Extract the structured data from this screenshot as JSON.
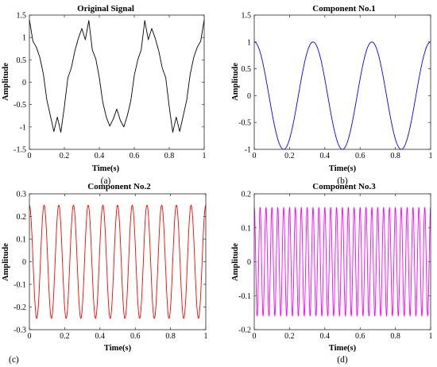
{
  "chart_data": [
    {
      "type": "line",
      "panel_label": "(a)",
      "title": "Original Signal",
      "xlabel": "Time(s)",
      "ylabel": "Amplitude",
      "xlim": [
        0,
        1
      ],
      "ylim": [
        -1.5,
        1.5
      ],
      "xticks": [
        "0",
        "0.2",
        "0.4",
        "0.6",
        "0.8",
        "1"
      ],
      "yticks": [
        "-1.5",
        "-1",
        "-0.5",
        "0",
        "0.5",
        "1",
        "1.5"
      ],
      "grid": false,
      "series": [
        {
          "color": "#000000",
          "x": [
            0,
            0.02,
            0.04,
            0.06,
            0.08,
            0.1,
            0.12,
            0.14,
            0.16,
            0.18,
            0.2,
            0.22,
            0.24,
            0.26,
            0.28,
            0.3,
            0.32,
            0.34,
            0.36,
            0.38,
            0.4,
            0.42,
            0.44,
            0.46,
            0.48,
            0.5,
            0.52,
            0.54,
            0.56,
            0.58,
            0.6,
            0.62,
            0.64,
            0.66,
            0.68,
            0.7,
            0.72,
            0.74,
            0.76,
            0.78,
            0.8,
            0.82,
            0.84,
            0.86,
            0.88,
            0.9,
            0.92,
            0.94,
            0.96,
            0.98,
            1.0
          ],
          "y": [
            1.4,
            0.92,
            0.78,
            0.55,
            0.18,
            -0.4,
            -0.75,
            -1.1,
            -0.78,
            -1.12,
            -0.55,
            0.1,
            0.32,
            0.7,
            0.98,
            1.2,
            0.95,
            1.38,
            0.72,
            0.52,
            0.1,
            -0.45,
            -0.78,
            -0.98,
            -0.82,
            -0.6,
            -0.85,
            -1.0,
            -0.75,
            -0.42,
            0.15,
            0.5,
            0.73,
            1.38,
            0.95,
            1.2,
            0.98,
            0.7,
            0.32,
            0.1,
            -0.55,
            -1.12,
            -0.78,
            -1.1,
            -0.75,
            -0.4,
            0.18,
            0.55,
            0.78,
            0.92,
            1.4
          ]
        }
      ]
    },
    {
      "type": "line",
      "panel_label": "(b)",
      "title": "Component No.1",
      "xlabel": "Time(s)",
      "ylabel": "Amplitude",
      "xlim": [
        0,
        1
      ],
      "ylim": [
        -1,
        1.5
      ],
      "xticks": [
        "0",
        "0.2",
        "0.4",
        "0.6",
        "0.8",
        "1"
      ],
      "yticks": [
        "-1",
        "-0.5",
        "0",
        "0.5",
        "1",
        "1.5"
      ],
      "grid": false,
      "series": [
        {
          "color": "#0000ff",
          "function": "cosine",
          "amplitude": 1,
          "frequency_hz": 3
        }
      ]
    },
    {
      "type": "line",
      "panel_label": "(c)",
      "title": "Component No.2",
      "xlabel": "Time(s)",
      "ylabel": "Amplitude",
      "xlim": [
        0,
        1
      ],
      "ylim": [
        -0.3,
        0.3
      ],
      "xticks": [
        "0",
        "0.2",
        "0.4",
        "0.6",
        "0.8",
        "1"
      ],
      "yticks": [
        "-0.3",
        "-0.2",
        "-0.1",
        "0",
        "0.1",
        "0.2",
        "0.3"
      ],
      "grid": false,
      "series": [
        {
          "color": "#ff0000",
          "function": "cosine",
          "amplitude": 0.25,
          "frequency_hz": 12
        }
      ]
    },
    {
      "type": "line",
      "panel_label": "(d)",
      "title": "Component No.3",
      "xlabel": "Time(s)",
      "ylabel": "Amplitude",
      "xlim": [
        0,
        1
      ],
      "ylim": [
        -0.2,
        0.2
      ],
      "xticks": [
        "0",
        "0.2",
        "0.4",
        "0.6",
        "0.8",
        "1"
      ],
      "yticks": [
        "-0.2",
        "-0.1",
        "0",
        "0.1",
        "0.2"
      ],
      "grid": false,
      "series": [
        {
          "color": "#ff00ff",
          "function": "cosine",
          "amplitude": 0.16,
          "frequency_hz": 30
        }
      ]
    }
  ]
}
